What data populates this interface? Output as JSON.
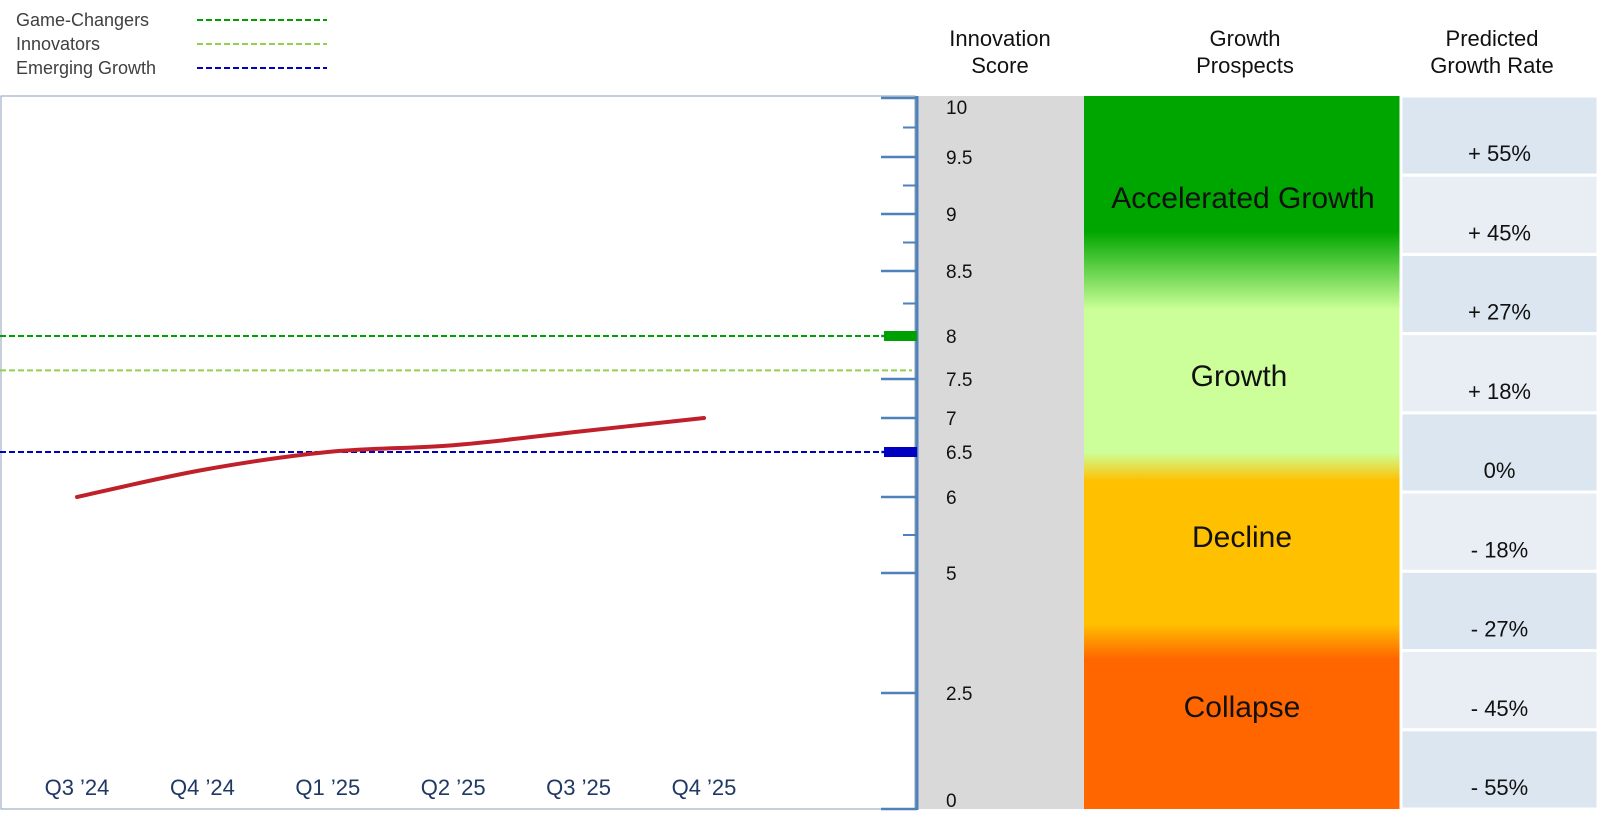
{
  "legend": [
    {
      "label": "Game-Changers",
      "color": "#00a000",
      "level": 8
    },
    {
      "label": "Innovators",
      "color": "#92d050",
      "level": 7.6
    },
    {
      "label": "Emerging Growth",
      "color": "#0000c0",
      "level": 6.5
    }
  ],
  "headers": {
    "score": [
      "Innovation",
      "Score"
    ],
    "prospects": [
      "Growth",
      "Prospects"
    ],
    "rate": [
      "Predicted",
      "Growth Rate"
    ]
  },
  "score_ticks": [
    "10",
    "9.5",
    "9",
    "8.5",
    "8",
    "7.5",
    "7",
    "6.5",
    "6",
    "5",
    "2.5",
    "0"
  ],
  "prospect_bands": [
    "Accelerated Growth",
    "Growth",
    "Decline",
    "Collapse"
  ],
  "growth_rates": [
    "+ 55%",
    "+ 45%",
    "+ 27%",
    "+ 18%",
    "0%",
    "- 18%",
    "- 27%",
    "- 45%",
    "- 55%"
  ],
  "chart_data": {
    "type": "line",
    "x": [
      "Q3 ’24",
      "Q4 ’24",
      "Q1 ’25",
      "Q2 ’25",
      "Q3 ’25",
      "Q4 ’25"
    ],
    "series": [
      {
        "values": [
          6.0,
          6.3,
          6.5,
          6.6,
          6.8,
          7.0
        ],
        "color": "#c0202a"
      }
    ],
    "ylim": [
      0,
      10
    ],
    "reference_lines": [
      {
        "name": "Game-Changers",
        "value": 8,
        "color": "#00a000"
      },
      {
        "name": "Innovators",
        "value": 7.6,
        "color": "#92d050"
      },
      {
        "name": "Emerging Growth",
        "value": 6.5,
        "color": "#0000c0"
      }
    ],
    "grid": false,
    "legend_position": "top-left"
  }
}
